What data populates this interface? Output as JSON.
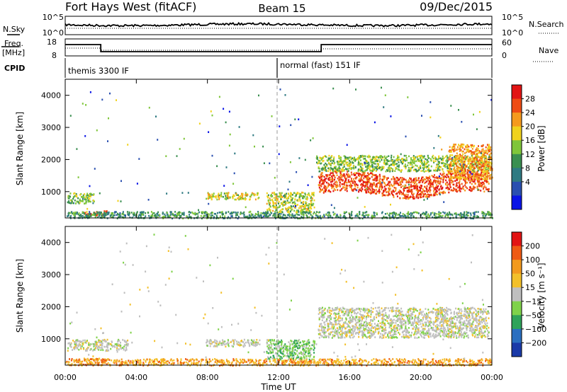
{
  "header": {
    "station": "Fort Hays West (fitACF)",
    "beam": "Beam 15",
    "date": "09/Dec/2015"
  },
  "summary_panel": {
    "nsky_label": "N.Sky",
    "nsky_ticks": [
      "10^5",
      "10^0"
    ],
    "nsearch_label": "N.Search",
    "nsearch_ticks": [
      "10^5",
      "10^0"
    ],
    "freq_label_1": "Freq.",
    "freq_label_2": "[MHz]",
    "freq_ticks": [
      "18",
      "8"
    ],
    "nave_label": "Nave",
    "nave_ticks": [
      "60",
      "0"
    ],
    "cpid_label": "CPID",
    "cpid_segments": [
      {
        "label": "themis 3300 IF",
        "start_hour": 0,
        "end_hour": 12
      },
      {
        "label": "normal (fast) 151 IF",
        "start_hour": 12,
        "end_hour": 24
      }
    ],
    "frequency_steps": [
      {
        "start_hour": 0,
        "end_hour": 2,
        "level": "high"
      },
      {
        "start_hour": 2,
        "end_hour": 14.4,
        "level": "low"
      },
      {
        "start_hour": 14.4,
        "end_hour": 24,
        "level": "high"
      }
    ]
  },
  "time_axis": {
    "label": "Time UT",
    "ticks": [
      "00:00",
      "04:00",
      "08:00",
      "12:00",
      "16:00",
      "20:00",
      "00:00"
    ]
  },
  "chart_data": [
    {
      "type": "heatmap",
      "name": "power",
      "xlabel": "Time UT",
      "ylabel": "Slant Range [km]",
      "xlim": [
        0,
        24
      ],
      "ylim": [
        180,
        4500
      ],
      "yticks": [
        "1000",
        "2000",
        "3000",
        "4000"
      ],
      "colorbar_label": "Power [dB]",
      "colorbar_ticks": [
        "4",
        "8",
        "12",
        "16",
        "20",
        "24",
        "28"
      ],
      "colorbar_colors": [
        "#0a14e6",
        "#2a4fb0",
        "#2f7a82",
        "#3a8f50",
        "#7fc63a",
        "#f0d21e",
        "#f59a1e",
        "#ee4c14",
        "#e21414"
      ],
      "scatter_regions": [
        {
          "t0": 0.1,
          "t1": 1.6,
          "r0": 650,
          "r1": 1000,
          "level": 0.45
        },
        {
          "t0": 1.0,
          "t1": 2.4,
          "r0": 280,
          "r1": 420,
          "level": 0.85
        },
        {
          "t0": 7.9,
          "t1": 10.9,
          "r0": 780,
          "r1": 1000,
          "level": 0.6
        },
        {
          "t0": 11.3,
          "t1": 14.0,
          "r0": 380,
          "r1": 1000,
          "level": 0.55
        },
        {
          "t0": 14.2,
          "t1": 23.8,
          "r0": 1050,
          "r1": 1700,
          "level": 0.88
        },
        {
          "t0": 14.1,
          "t1": 23.9,
          "r0": 1650,
          "r1": 2150,
          "level": 0.5
        },
        {
          "t0": 21.5,
          "t1": 24,
          "r0": 1400,
          "r1": 2500,
          "level": 0.75
        },
        {
          "t0": 0,
          "t1": 24,
          "r0": 190,
          "r1": 400,
          "level": 0.35
        }
      ]
    },
    {
      "type": "heatmap",
      "name": "velocity",
      "xlabel": "Time UT",
      "ylabel": "Slant Range [km]",
      "xlim": [
        0,
        24
      ],
      "ylim": [
        180,
        4500
      ],
      "yticks": [
        "1000",
        "2000",
        "3000",
        "4000"
      ],
      "colorbar_label": "Velocity [m s⁻¹]",
      "colorbar_ticks": [
        "200",
        "100",
        "50",
        "15",
        "−15",
        "−50",
        "−100",
        "−200"
      ],
      "colorbar_colors": [
        "#1a3aa8",
        "#2b6fc0",
        "#2fa35a",
        "#7fd24a",
        "#bfbfbf",
        "#f3c02a",
        "#f39a1e",
        "#ef5a14",
        "#e21414"
      ],
      "scatter_regions": [
        {
          "t0": 0.1,
          "t1": 3.5,
          "r0": 650,
          "r1": 1000,
          "level": "grey"
        },
        {
          "t0": 1.0,
          "t1": 2.4,
          "r0": 280,
          "r1": 420,
          "level": "orange"
        },
        {
          "t0": 7.9,
          "t1": 10.9,
          "r0": 780,
          "r1": 1000,
          "level": "grey"
        },
        {
          "t0": 11.3,
          "t1": 14.0,
          "r0": 380,
          "r1": 1000,
          "level": "green"
        },
        {
          "t0": 14.2,
          "t1": 23.8,
          "r0": 1050,
          "r1": 2000,
          "level": "grey"
        },
        {
          "t0": 0,
          "t1": 24,
          "r0": 190,
          "r1": 400,
          "level": "orange"
        }
      ]
    }
  ]
}
